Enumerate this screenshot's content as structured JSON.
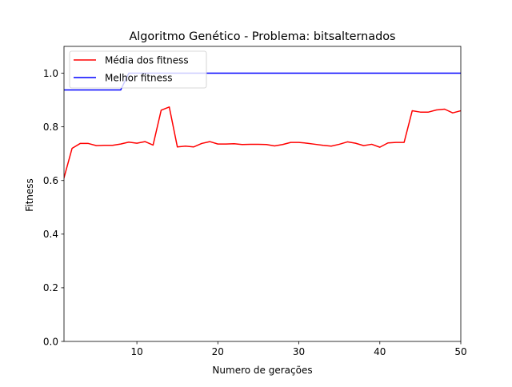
{
  "chart_data": {
    "type": "line",
    "title": "Algoritmo Genético - Problema: bitsalternados",
    "xlabel": "Numero de gerações",
    "ylabel": "Fitness",
    "xlim": [
      1,
      50
    ],
    "ylim": [
      0,
      1.1
    ],
    "xticks": [
      10,
      20,
      30,
      40,
      50
    ],
    "yticks": [
      0.0,
      0.2,
      0.4,
      0.6,
      0.8,
      1.0
    ],
    "xtick_labels": [
      "10",
      "20",
      "30",
      "40",
      "50"
    ],
    "ytick_labels": [
      "0.0",
      "0.2",
      "0.4",
      "0.6",
      "0.8",
      "1.0"
    ],
    "grid": false,
    "legend_position": "top-left",
    "x": [
      1,
      2,
      3,
      4,
      5,
      6,
      7,
      8,
      9,
      10,
      11,
      12,
      13,
      14,
      15,
      16,
      17,
      18,
      19,
      20,
      21,
      22,
      23,
      24,
      25,
      26,
      27,
      28,
      29,
      30,
      31,
      32,
      33,
      34,
      35,
      36,
      37,
      38,
      39,
      40,
      41,
      42,
      43,
      44,
      45,
      46,
      47,
      48,
      49,
      50
    ],
    "series": [
      {
        "name": "Média dos fitness",
        "color": "#ff0000",
        "values": [
          0.61,
          0.72,
          0.738,
          0.738,
          0.73,
          0.731,
          0.731,
          0.736,
          0.743,
          0.739,
          0.745,
          0.732,
          0.862,
          0.874,
          0.725,
          0.728,
          0.725,
          0.738,
          0.745,
          0.736,
          0.736,
          0.737,
          0.734,
          0.735,
          0.735,
          0.734,
          0.729,
          0.734,
          0.742,
          0.742,
          0.739,
          0.735,
          0.731,
          0.728,
          0.735,
          0.744,
          0.739,
          0.73,
          0.735,
          0.724,
          0.74,
          0.742,
          0.742,
          0.86,
          0.855,
          0.855,
          0.863,
          0.866,
          0.852,
          0.86
        ]
      },
      {
        "name": "Melhor fitness",
        "color": "#0000ff",
        "values": [
          0.9375,
          0.9375,
          0.9375,
          0.9375,
          0.9375,
          0.9375,
          0.9375,
          0.9375,
          1.0,
          1.0,
          1.0,
          1.0,
          1.0,
          1.0,
          1.0,
          1.0,
          1.0,
          1.0,
          1.0,
          1.0,
          1.0,
          1.0,
          1.0,
          1.0,
          1.0,
          1.0,
          1.0,
          1.0,
          1.0,
          1.0,
          1.0,
          1.0,
          1.0,
          1.0,
          1.0,
          1.0,
          1.0,
          1.0,
          1.0,
          1.0,
          1.0,
          1.0,
          1.0,
          1.0,
          1.0,
          1.0,
          1.0,
          1.0,
          1.0,
          1.0
        ]
      }
    ]
  }
}
